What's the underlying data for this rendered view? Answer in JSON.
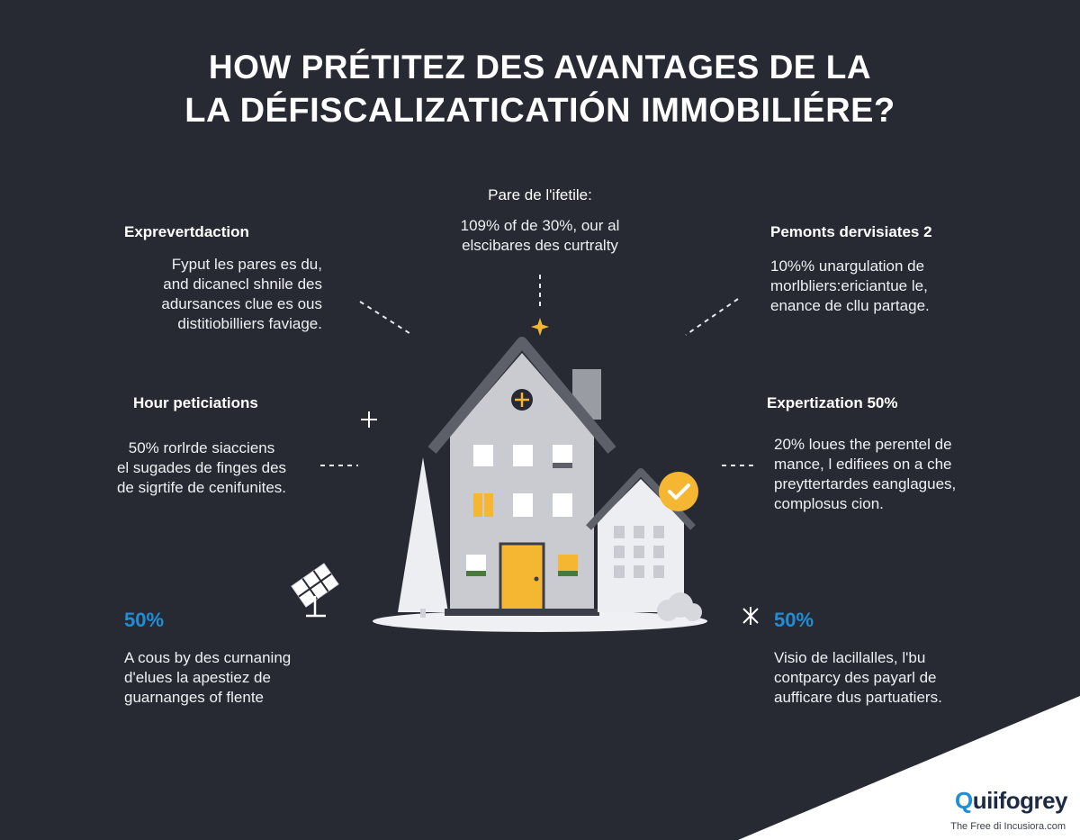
{
  "title": {
    "line1": "HOW PRÉTITEZ DES AVANTAGES DE LA",
    "line2": "LA DÉFISCALIZATICATIÓN IMMOBILIÉRE?"
  },
  "center_top": {
    "heading": "Pare de l'ifetile:",
    "text": "109% of de 30%, our al\nelscibares des curtralty"
  },
  "left_top": {
    "heading": "Exprevertdaction",
    "text": "Fyput les pares es du,\nand dicanecl shnile des\nadursances clue es ous\ndistitiobilliers faviage."
  },
  "right_top": {
    "heading": "Pemonts dervisiates 2",
    "text": "10%% unargulation de\nmorlbliers:ericiantue le,\nenance de cllu partage."
  },
  "left_mid": {
    "heading": "Hour peticiations",
    "text": "50% rorlrde siacciens\nel sugades de finges des\nde sigrtife de cenifunites."
  },
  "right_mid": {
    "heading": "Expertization 50%",
    "text": "20% loues the perentel de\nmance, l edifiees on a che\npreyttertardes eanglagues,\ncomplosus cion."
  },
  "left_bottom": {
    "percent": "50%",
    "text": "A cous by des curnaning\nd'elues la apestiez de\nguarnanges of flente"
  },
  "right_bottom": {
    "percent": "50%",
    "text": "Visio de lacillalles, l'bu\ncontparcy des payarl de\naufficare dus partuatiers."
  },
  "brand": {
    "name_accent": "Q",
    "name_rest": "uiifogrey",
    "tagline": "The Free di Incusiora.com"
  },
  "colors": {
    "background": "#272a33",
    "accent_blue": "#1f8ed6",
    "accent_yellow": "#f5b731",
    "house_main": "#c9cbd0",
    "roof": "#5d6068"
  },
  "icons": [
    "star-icon",
    "sparkle-icon",
    "check-badge-icon",
    "solar-panel-icon",
    "chimney-icon",
    "tree-icon",
    "bush-icon"
  ]
}
